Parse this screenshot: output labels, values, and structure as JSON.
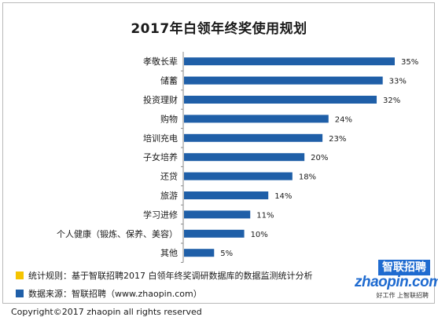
{
  "chart_data": {
    "type": "bar",
    "orientation": "horizontal",
    "title": "2017年白领年终奖使用规划",
    "categories": [
      "孝敬长辈",
      "储蓄",
      "投资理财",
      "购物",
      "培训充电",
      "子女培养",
      "还贷",
      "旅游",
      "学习进修",
      "个人健康（锻炼、保养、美容）",
      "其他"
    ],
    "values": [
      35,
      33,
      32,
      24,
      23,
      20,
      18,
      14,
      11,
      10,
      5
    ],
    "value_labels": [
      "35%",
      "33%",
      "32%",
      "24%",
      "23%",
      "20%",
      "18%",
      "14%",
      "11%",
      "10%",
      "5%"
    ],
    "xlim": [
      0,
      35
    ],
    "grid": false,
    "bar_color": "#1f5fa8"
  },
  "legend": {
    "items": [
      {
        "text": "统计规则：基于智联招聘2017 白领年终奖调研数据库的数据监测统计分析",
        "color": "#f5c400"
      },
      {
        "text": "数据来源：智联招聘（www.zhaopin.com）",
        "color": "#1f5fa8"
      }
    ]
  },
  "logo": {
    "box_text": "智联招聘",
    "wordmark": "zhaopin.com",
    "slogan": "好工作 上智联招聘",
    "color": "#1f6bd0"
  },
  "footer": {
    "copyright": "Copyright©2017 zhaopin all rights reserved"
  }
}
